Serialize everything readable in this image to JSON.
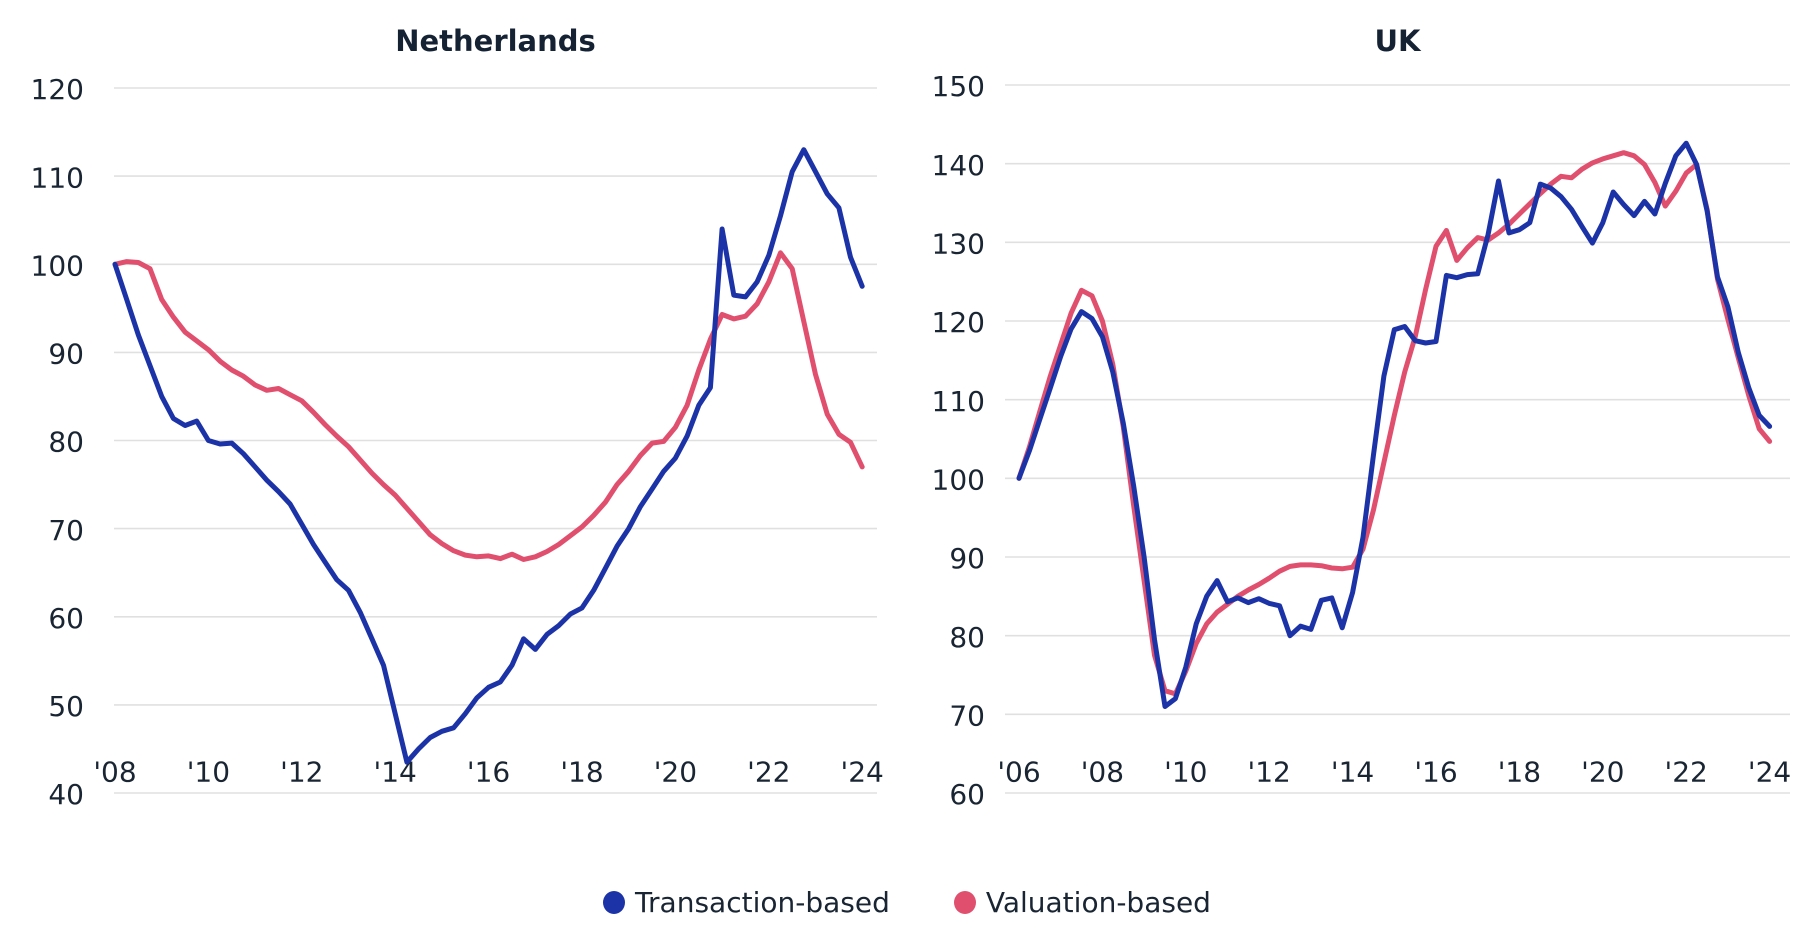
{
  "legend": {
    "items": [
      {
        "label": "Transaction-based",
        "color": "#1c33a8"
      },
      {
        "label": "Valuation-based",
        "color": "#e0506e"
      }
    ]
  },
  "colors": {
    "transaction_line": "#1c33a8",
    "valuation_line": "#e0506e",
    "grid": "#e0e0e0",
    "text": "#1a2533",
    "title": "#152233",
    "background": "#ffffff"
  },
  "chart_data": [
    {
      "type": "line",
      "title": "Netherlands",
      "x_start": 2008,
      "frequency": "quarterly",
      "xlabel": "",
      "ylabel": "",
      "ylim": [
        40,
        120
      ],
      "y_ticks": [
        120,
        110,
        100,
        90,
        80,
        70,
        60,
        50,
        40
      ],
      "x_tick_years": [
        2008,
        2010,
        2012,
        2014,
        2016,
        2018,
        2020,
        2022,
        2024
      ],
      "x_tick_labels": [
        "'08",
        "'10",
        "'12",
        "'14",
        "'16",
        "'18",
        "'20",
        "'22",
        "'24"
      ],
      "grid": "horizontal",
      "series": [
        {
          "name": "Transaction-based",
          "color": "#1c33a8",
          "values": [
            100,
            96,
            92,
            88.5,
            85,
            82.5,
            81.7,
            82.2,
            80,
            79.6,
            79.7,
            78.5,
            77,
            75.5,
            74.2,
            72.8,
            70.5,
            68.2,
            66.2,
            64.2,
            63,
            60.5,
            57.5,
            54.5,
            49,
            43.5,
            45,
            46.3,
            47,
            47.4,
            49,
            50.8,
            52,
            52.6,
            54.5,
            57.5,
            56.3,
            58,
            59,
            60.3,
            61,
            63,
            65.5,
            68,
            70,
            72.5,
            74.5,
            76.5,
            78,
            80.5,
            84,
            86,
            104,
            96.5,
            96.3,
            98,
            101,
            105.5,
            110.5,
            113,
            110.5,
            108,
            106.4,
            100.8,
            97.5
          ]
        },
        {
          "name": "Valuation-based",
          "color": "#e0506e",
          "values": [
            100,
            100.3,
            100.2,
            99.5,
            96,
            94,
            92.3,
            91.3,
            90.3,
            89,
            88,
            87.3,
            86.3,
            85.7,
            85.9,
            85.2,
            84.5,
            83.2,
            81.8,
            80.5,
            79.3,
            77.8,
            76.3,
            75,
            73.8,
            72.3,
            70.8,
            69.3,
            68.3,
            67.5,
            67,
            66.8,
            66.9,
            66.6,
            67.1,
            66.5,
            66.8,
            67.4,
            68.2,
            69.2,
            70.2,
            71.5,
            73,
            75,
            76.5,
            78.3,
            79.7,
            79.9,
            81.5,
            84,
            88,
            91.5,
            94.3,
            93.8,
            94.1,
            95.5,
            98,
            101.3,
            99.5,
            93.5,
            87.5,
            83,
            80.7,
            79.8,
            77
          ]
        }
      ]
    },
    {
      "type": "line",
      "title": "UK",
      "x_start": 2006,
      "frequency": "quarterly",
      "xlabel": "",
      "ylabel": "",
      "ylim": [
        60,
        150
      ],
      "y_ticks": [
        150,
        140,
        130,
        120,
        110,
        100,
        90,
        80,
        70,
        60
      ],
      "x_tick_years": [
        2006,
        2008,
        2010,
        2012,
        2014,
        2016,
        2018,
        2020,
        2022,
        2024
      ],
      "x_tick_labels": [
        "'06",
        "'08",
        "'10",
        "'12",
        "'14",
        "'16",
        "'18",
        "'20",
        "'22",
        "'24"
      ],
      "grid": "horizontal",
      "series": [
        {
          "name": "Transaction-based",
          "color": "#1c33a8",
          "values": [
            100,
            103.5,
            107.5,
            111.5,
            115.5,
            119,
            121.2,
            120.3,
            118,
            113.5,
            107,
            99,
            90,
            79.5,
            71,
            72,
            76,
            81.5,
            85,
            87,
            84.3,
            84.8,
            84.2,
            84.7,
            84.1,
            83.8,
            80,
            81.2,
            80.8,
            84.5,
            84.8,
            81,
            85.5,
            92.5,
            103,
            113,
            118.9,
            119.3,
            117.5,
            117.2,
            117.4,
            125.8,
            125.5,
            125.9,
            126,
            131,
            137.8,
            131.2,
            131.6,
            132.5,
            137.4,
            136.9,
            135.8,
            134.2,
            132,
            129.9,
            132.5,
            136.4,
            134.8,
            133.4,
            135.2,
            133.6,
            137.5,
            141,
            142.6,
            139.9,
            134,
            125.6,
            121.8,
            116,
            111.5,
            108,
            106.6
          ]
        },
        {
          "name": "Valuation-based",
          "color": "#e0506e",
          "values": [
            100,
            104,
            108.5,
            113,
            117,
            121,
            123.9,
            123.2,
            120,
            114.5,
            106.5,
            96.5,
            87,
            77.5,
            73,
            72.6,
            75.5,
            79,
            81.5,
            83,
            84,
            85,
            85.8,
            86.5,
            87.3,
            88.2,
            88.8,
            89,
            89,
            88.9,
            88.6,
            88.5,
            88.7,
            91,
            96,
            102,
            108,
            113.5,
            118,
            124,
            129.5,
            131.5,
            127.7,
            129.3,
            130.6,
            130.3,
            131.2,
            132.3,
            133.6,
            134.9,
            136.2,
            137.4,
            138.4,
            138.2,
            139.3,
            140.1,
            140.6,
            141,
            141.4,
            141,
            139.9,
            137.6,
            134.6,
            136.5,
            138.8,
            139.9,
            134.2,
            125.3,
            120.2,
            115.3,
            110.5,
            106.3,
            104.7
          ]
        }
      ]
    }
  ]
}
